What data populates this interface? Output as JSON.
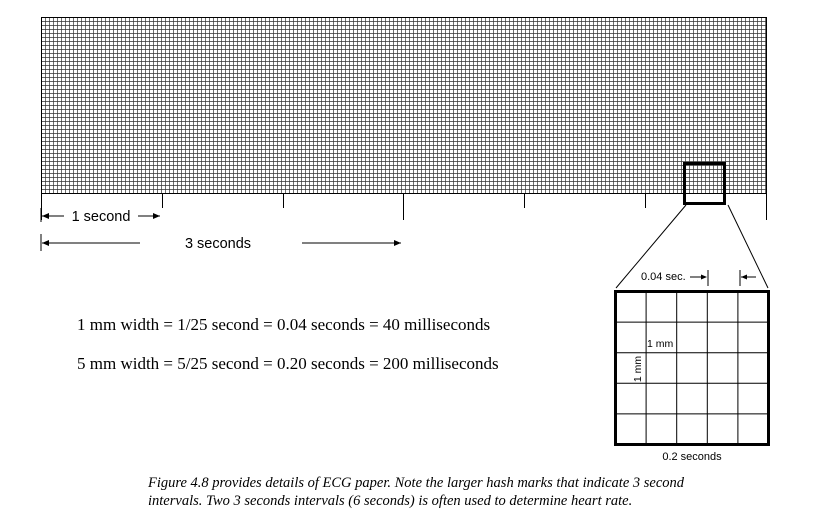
{
  "labels": {
    "one_second": "1 second",
    "three_seconds": "3 seconds",
    "small_box_time": "0.04 sec.",
    "one_mm_horizontal": "1 mm",
    "one_mm_vertical": "1 mm",
    "big_box_time": "0.2 seconds"
  },
  "equations": {
    "line1": "1 mm width = 1/25 second = 0.04 seconds = 40 milliseconds",
    "line2": "5 mm width = 5/25 second = 0.20 seconds = 200 milliseconds"
  },
  "caption": {
    "line1": "Figure 4.8 provides details of ECG paper. Note the larger hash marks that indicate 3 second",
    "line2": "intervals. Two 3 seconds intervals (6 seconds) is often used to determine heart rate."
  },
  "colors": {
    "grid_line": "#333333",
    "ink": "#000000"
  }
}
